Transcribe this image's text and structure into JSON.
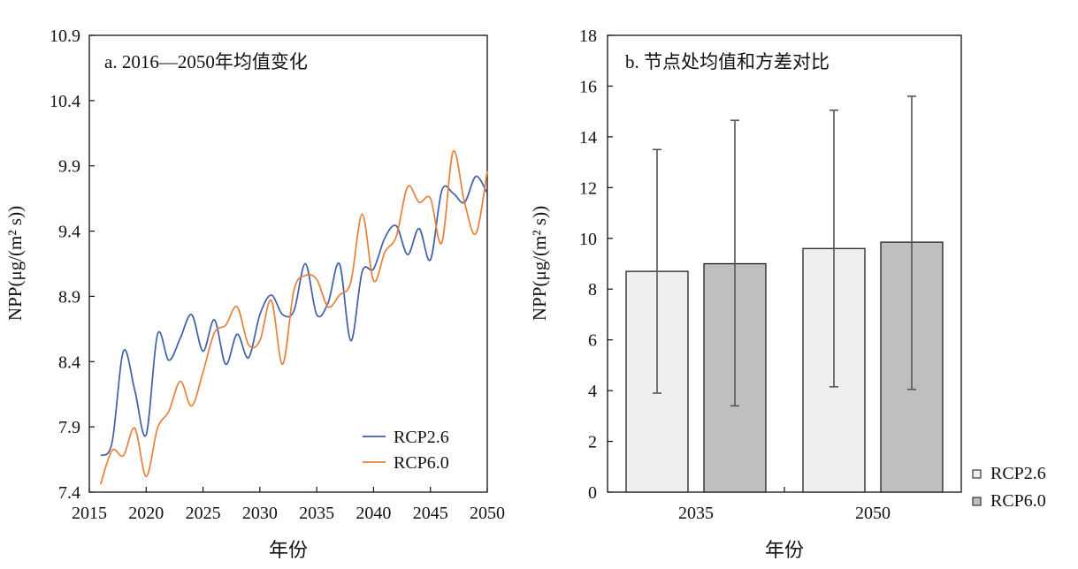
{
  "chart_data": [
    {
      "type": "line",
      "title": "a. 2016—2050年均值变化",
      "xlabel": "年份",
      "ylabel": "NPP(μg/(m² s))",
      "xlim": [
        2015,
        2050
      ],
      "ylim": [
        7.4,
        10.9
      ],
      "xticks": [
        "2015",
        "2020",
        "2025",
        "2030",
        "2035",
        "2040",
        "2045",
        "2050"
      ],
      "yticks": [
        "7.4",
        "7.9",
        "8.4",
        "8.9",
        "9.4",
        "9.9",
        "10.4",
        "10.9"
      ],
      "legend_position": "bottom-right",
      "x": [
        2016,
        2017,
        2018,
        2019,
        2020,
        2021,
        2022,
        2023,
        2024,
        2025,
        2026,
        2027,
        2028,
        2029,
        2030,
        2031,
        2032,
        2033,
        2034,
        2035,
        2036,
        2037,
        2038,
        2039,
        2040,
        2041,
        2042,
        2043,
        2044,
        2045,
        2046,
        2047,
        2048,
        2049,
        2050
      ],
      "series": [
        {
          "name": "RCP2.6",
          "color": "#3f5fa8",
          "values": [
            7.68,
            7.78,
            8.48,
            8.18,
            7.84,
            8.61,
            8.41,
            8.58,
            8.76,
            8.48,
            8.72,
            8.38,
            8.61,
            8.43,
            8.76,
            8.91,
            8.76,
            8.79,
            9.15,
            8.76,
            8.85,
            9.15,
            8.56,
            9.09,
            9.11,
            9.35,
            9.44,
            9.22,
            9.42,
            9.18,
            9.71,
            9.69,
            9.62,
            9.82,
            9.69
          ]
        },
        {
          "name": "RCP6.0",
          "color": "#e8803a",
          "values": [
            7.46,
            7.72,
            7.68,
            7.89,
            7.52,
            7.89,
            8.02,
            8.25,
            8.06,
            8.32,
            8.62,
            8.68,
            8.82,
            8.53,
            8.56,
            8.87,
            8.38,
            8.95,
            9.06,
            9.03,
            8.82,
            8.91,
            9.01,
            9.53,
            9.02,
            9.24,
            9.36,
            9.74,
            9.62,
            9.65,
            9.31,
            10.01,
            9.62,
            9.38,
            9.86
          ]
        }
      ]
    },
    {
      "type": "bar",
      "title": "b. 节点处均值和方差对比",
      "xlabel": "年份",
      "ylabel": "NPP(μg/(m² s))",
      "ylim": [
        0,
        18
      ],
      "yticks": [
        "0",
        "2",
        "4",
        "6",
        "8",
        "10",
        "12",
        "14",
        "16",
        "18"
      ],
      "categories": [
        "2035",
        "2050"
      ],
      "legend_position": "right-bottom",
      "series": [
        {
          "name": "RCP2.6",
          "color": "#efefef",
          "values": [
            8.7,
            9.6
          ],
          "error_low": [
            3.9,
            4.15
          ],
          "error_high": [
            13.5,
            15.05
          ]
        },
        {
          "name": "RCP6.0",
          "color": "#c0bfbd",
          "values": [
            9.0,
            9.85
          ],
          "error_low": [
            3.4,
            4.05
          ],
          "error_high": [
            14.65,
            15.6
          ]
        }
      ]
    }
  ]
}
